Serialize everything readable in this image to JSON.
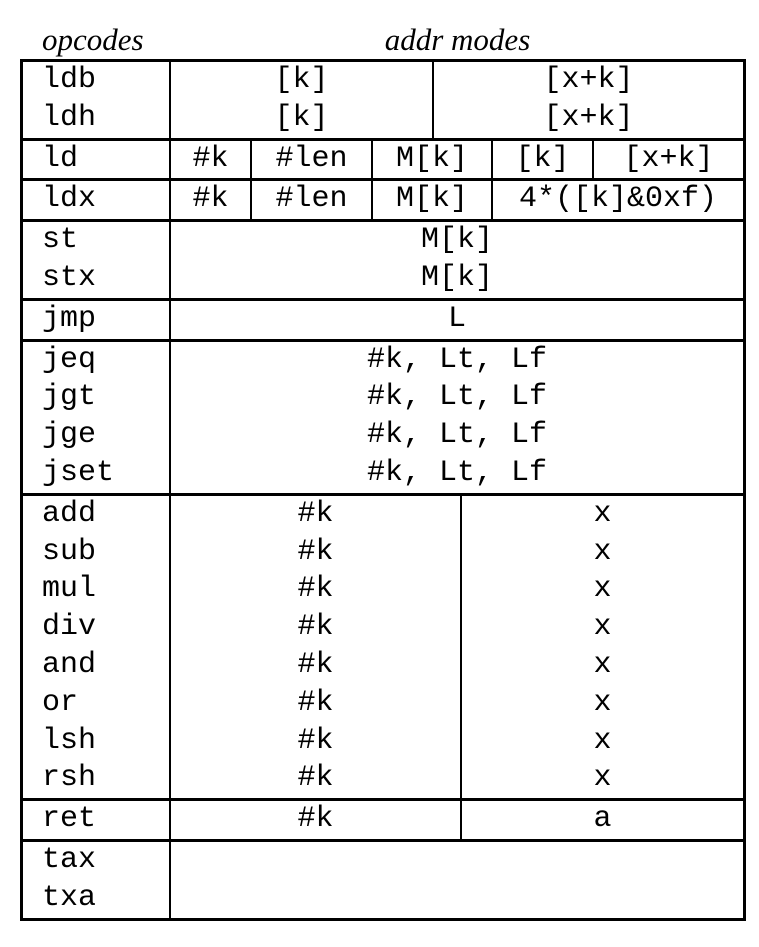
{
  "page": {
    "background": "#ffffff",
    "text_color": "#000000",
    "border_color": "#000000"
  },
  "header": {
    "opcodes_label": "opcodes",
    "addr_modes_label": "addr modes"
  },
  "table": {
    "groups": [
      {
        "rows": [
          {
            "opcode": "ldb",
            "modes": [
              "[k]",
              "[x+k]"
            ]
          },
          {
            "opcode": "ldh",
            "modes": [
              "[k]",
              "[x+k]"
            ]
          }
        ]
      },
      {
        "rows": [
          {
            "opcode": "ld",
            "modes": [
              "#k",
              "#len",
              "M[k]",
              "[k]",
              "[x+k]"
            ]
          }
        ]
      },
      {
        "rows": [
          {
            "opcode": "ldx",
            "modes": [
              "#k",
              "#len",
              "M[k]",
              "4*([k]&0xf)"
            ]
          }
        ]
      },
      {
        "rows": [
          {
            "opcode": "st",
            "modes": [
              "M[k]"
            ]
          },
          {
            "opcode": "stx",
            "modes": [
              "M[k]"
            ]
          }
        ]
      },
      {
        "rows": [
          {
            "opcode": "jmp",
            "modes": [
              "L"
            ]
          }
        ]
      },
      {
        "rows": [
          {
            "opcode": "jeq",
            "modes": [
              "#k, Lt, Lf"
            ]
          },
          {
            "opcode": "jgt",
            "modes": [
              "#k, Lt, Lf"
            ]
          },
          {
            "opcode": "jge",
            "modes": [
              "#k, Lt, Lf"
            ]
          },
          {
            "opcode": "jset",
            "modes": [
              "#k, Lt, Lf"
            ]
          }
        ]
      },
      {
        "rows": [
          {
            "opcode": "add",
            "modes": [
              "#k",
              "x"
            ]
          },
          {
            "opcode": "sub",
            "modes": [
              "#k",
              "x"
            ]
          },
          {
            "opcode": "mul",
            "modes": [
              "#k",
              "x"
            ]
          },
          {
            "opcode": "div",
            "modes": [
              "#k",
              "x"
            ]
          },
          {
            "opcode": "and",
            "modes": [
              "#k",
              "x"
            ]
          },
          {
            "opcode": "or",
            "modes": [
              "#k",
              "x"
            ]
          },
          {
            "opcode": "lsh",
            "modes": [
              "#k",
              "x"
            ]
          },
          {
            "opcode": "rsh",
            "modes": [
              "#k",
              "x"
            ]
          }
        ]
      },
      {
        "rows": [
          {
            "opcode": "ret",
            "modes": [
              "#k",
              "a"
            ]
          }
        ]
      },
      {
        "rows": [
          {
            "opcode": "tax",
            "modes": []
          },
          {
            "opcode": "txa",
            "modes": []
          }
        ]
      }
    ]
  }
}
